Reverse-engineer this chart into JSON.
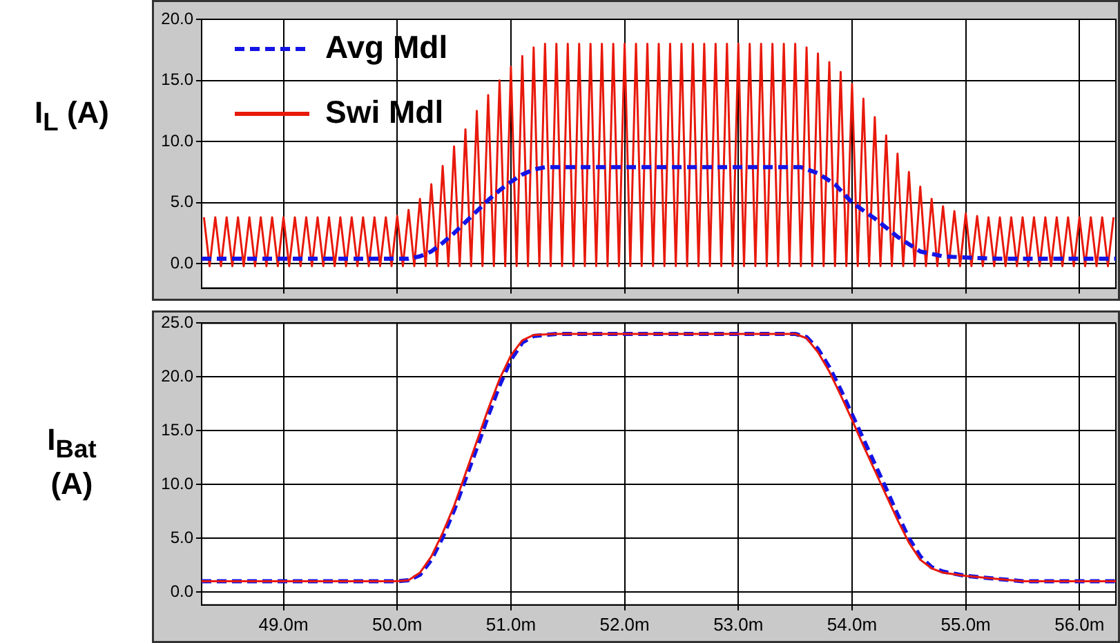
{
  "chart_data": [
    {
      "type": "line",
      "ylabel": "I$_{L}$ (A)",
      "xlim": [
        48.28,
        56.32
      ],
      "ylim": [
        -2,
        20
      ],
      "tick_labels": "y",
      "grid": true,
      "legend": "top left",
      "xticks": [
        49,
        50,
        51,
        52,
        53,
        54,
        55,
        56
      ],
      "yticks": [
        {
          "value": 0,
          "label": "0.0"
        },
        {
          "value": 5,
          "label": "5.0"
        },
        {
          "value": 10,
          "label": "10.0"
        },
        {
          "value": 15,
          "label": "15.0"
        },
        {
          "value": 20,
          "label": "20.0"
        }
      ],
      "series": [
        {
          "name": "Avg Mdl",
          "color": "#1414e6",
          "line_style": "dashed",
          "x": [
            48.28,
            50.1,
            50.2,
            50.3,
            50.4,
            50.5,
            50.6,
            50.7,
            50.8,
            50.9,
            51.0,
            51.1,
            51.2,
            51.3,
            51.4,
            53.55,
            53.7,
            53.85,
            54.0,
            54.2,
            54.4,
            54.6,
            54.8,
            55.0,
            55.3,
            56.32
          ],
          "values": [
            0.4,
            0.4,
            0.6,
            1.0,
            1.7,
            2.5,
            3.4,
            4.3,
            5.2,
            6.0,
            6.7,
            7.3,
            7.7,
            7.9,
            7.9,
            7.9,
            7.4,
            6.5,
            5.0,
            3.7,
            2.2,
            1.0,
            0.6,
            0.5,
            0.4,
            0.4
          ]
        },
        {
          "name": "Swi Mdl",
          "color": "#e8190b",
          "line_style": "solid",
          "x": [
            48.3,
            48.35,
            48.4,
            48.45,
            48.5,
            48.55,
            48.6,
            48.65,
            48.7,
            48.75,
            48.8,
            48.85,
            48.9,
            48.95,
            49,
            49.05,
            49.1,
            49.15,
            49.2,
            49.25,
            49.3,
            49.35,
            49.4,
            49.45,
            49.5,
            49.55,
            49.6,
            49.65,
            49.7,
            49.75,
            49.8,
            49.85,
            49.9,
            49.95,
            50,
            50.05,
            50.1,
            50.15,
            50.2,
            50.25,
            50.3,
            50.35,
            50.4,
            50.45,
            50.5,
            50.55,
            50.6,
            50.65,
            50.7,
            50.75,
            50.8,
            50.85,
            50.9,
            50.95,
            51,
            51.05,
            51.1,
            51.15,
            51.2,
            51.25,
            51.3,
            51.35,
            51.4,
            51.45,
            51.5,
            51.55,
            51.6,
            51.65,
            51.7,
            51.75,
            51.8,
            51.85,
            51.9,
            51.95,
            52,
            52.05,
            52.1,
            52.15,
            52.2,
            52.25,
            52.3,
            52.35,
            52.4,
            52.45,
            52.5,
            52.55,
            52.6,
            52.65,
            52.7,
            52.75,
            52.8,
            52.85,
            52.9,
            52.95,
            53,
            53.05,
            53.1,
            53.15,
            53.2,
            53.25,
            53.3,
            53.35,
            53.4,
            53.45,
            53.5,
            53.55,
            53.6,
            53.65,
            53.7,
            53.75,
            53.8,
            53.85,
            53.9,
            53.95,
            54,
            54.05,
            54.1,
            54.15,
            54.2,
            54.25,
            54.3,
            54.35,
            54.4,
            54.45,
            54.5,
            54.55,
            54.6,
            54.65,
            54.7,
            54.75,
            54.8,
            54.85,
            54.9,
            54.95,
            55,
            55.05,
            55.1,
            55.15,
            55.2,
            55.25,
            55.3,
            55.35,
            55.4,
            55.45,
            55.5,
            55.55,
            55.6,
            55.65,
            55.7,
            55.75,
            55.8,
            55.85,
            55.9,
            55.95,
            56,
            56.05,
            56.1,
            56.15,
            56.2,
            56.25,
            56.3
          ],
          "values": [
            3.8,
            -0.2,
            3.8,
            -0.2,
            3.8,
            -0.2,
            3.8,
            -0.2,
            3.8,
            -0.2,
            3.8,
            -0.2,
            3.8,
            -0.2,
            3.8,
            -0.2,
            3.8,
            -0.2,
            3.8,
            -0.2,
            3.8,
            -0.2,
            3.8,
            -0.2,
            3.8,
            -0.2,
            3.8,
            -0.2,
            3.8,
            -0.2,
            3.8,
            -0.2,
            3.8,
            -0.2,
            3.9,
            -0.2,
            4.4,
            -0.2,
            5.3,
            -0.2,
            6.5,
            -0.2,
            8.0,
            -0.2,
            9.6,
            -0.2,
            11.0,
            -0.2,
            12.5,
            -0.2,
            13.8,
            -0.2,
            15.0,
            -0.2,
            16.1,
            -0.2,
            17.0,
            -0.2,
            17.7,
            -0.2,
            18.0,
            -0.2,
            18.0,
            -0.2,
            18.0,
            -0.2,
            18.0,
            -0.2,
            18.0,
            -0.2,
            18.0,
            -0.2,
            18.0,
            -0.2,
            18.0,
            -0.2,
            18.0,
            -0.2,
            18.0,
            -0.2,
            18.0,
            -0.2,
            18.0,
            -0.2,
            18.0,
            -0.2,
            18.0,
            -0.2,
            18.0,
            -0.2,
            18.0,
            -0.2,
            18.0,
            -0.2,
            18.0,
            -0.2,
            18.0,
            -0.2,
            18.0,
            -0.2,
            18.0,
            -0.2,
            18.0,
            -0.2,
            18.0,
            -0.2,
            17.7,
            -0.2,
            17.2,
            -0.2,
            16.5,
            -0.2,
            15.7,
            -0.2,
            14.7,
            -0.2,
            13.5,
            -0.2,
            12.0,
            -0.2,
            10.5,
            -0.2,
            9.0,
            -0.2,
            7.5,
            -0.2,
            6.3,
            -0.2,
            5.3,
            -0.2,
            4.7,
            -0.2,
            4.3,
            -0.2,
            4.1,
            -0.2,
            3.9,
            -0.2,
            3.8,
            -0.2,
            3.8,
            -0.2,
            3.8,
            -0.2,
            3.8,
            -0.2,
            3.8,
            -0.2,
            3.8,
            -0.2,
            3.8,
            -0.2,
            3.8,
            -0.2,
            3.8,
            -0.2,
            3.8,
            -0.2,
            3.8,
            -0.2,
            3.8
          ]
        }
      ]
    },
    {
      "type": "line",
      "ylabel": "I$_{Bat}$ (A)",
      "xlim": [
        48.28,
        56.32
      ],
      "ylim": [
        -1.2,
        25
      ],
      "grid": true,
      "xticks": [
        {
          "value": 49,
          "label": "49.0m"
        },
        {
          "value": 50,
          "label": "50.0m"
        },
        {
          "value": 51,
          "label": "51.0m"
        },
        {
          "value": 52,
          "label": "52.0m"
        },
        {
          "value": 53,
          "label": "53.0m"
        },
        {
          "value": 54,
          "label": "54.0m"
        },
        {
          "value": 55,
          "label": "55.0m"
        },
        {
          "value": 56,
          "label": "56.0m"
        }
      ],
      "yticks": [
        {
          "value": 0,
          "label": "0.0"
        },
        {
          "value": 5,
          "label": "5.0"
        },
        {
          "value": 10,
          "label": "10.0"
        },
        {
          "value": 15,
          "label": "15.0"
        },
        {
          "value": 20,
          "label": "20.0"
        },
        {
          "value": 25,
          "label": "25.0"
        }
      ],
      "series": [
        {
          "color": "#e8190b",
          "line_style": "solid",
          "x": [
            48.28,
            50.0,
            50.1,
            50.2,
            50.3,
            50.4,
            50.5,
            50.6,
            50.7,
            50.8,
            50.9,
            51.0,
            51.1,
            51.2,
            51.4,
            53.5,
            53.6,
            53.7,
            53.8,
            53.9,
            54.0,
            54.1,
            54.2,
            54.3,
            54.4,
            54.5,
            54.6,
            54.7,
            54.8,
            55.0,
            55.3,
            55.5,
            56.32
          ],
          "values": [
            1.0,
            1.0,
            1.1,
            1.8,
            3.3,
            5.5,
            8.0,
            11.0,
            14.0,
            17.0,
            19.8,
            22.0,
            23.4,
            23.9,
            24.0,
            24.0,
            23.6,
            22.3,
            20.5,
            18.3,
            16.0,
            13.6,
            11.3,
            9.0,
            6.7,
            4.6,
            3.0,
            2.2,
            1.8,
            1.5,
            1.2,
            1.0,
            1.0
          ]
        },
        {
          "color": "#1414e6",
          "line_style": "dashed",
          "x": [
            48.28,
            50.0,
            50.1,
            50.2,
            50.3,
            50.4,
            50.5,
            50.6,
            50.7,
            50.8,
            50.9,
            51.0,
            51.1,
            51.2,
            51.4,
            53.5,
            53.6,
            53.7,
            53.8,
            53.9,
            54.0,
            54.1,
            54.2,
            54.3,
            54.4,
            54.5,
            54.6,
            54.7,
            54.8,
            55.0,
            55.3,
            55.5,
            56.32
          ],
          "values": [
            1.0,
            1.0,
            1.1,
            1.6,
            3.0,
            5.1,
            7.6,
            10.5,
            13.4,
            16.4,
            19.2,
            21.6,
            23.2,
            23.8,
            24.0,
            24.0,
            23.7,
            22.6,
            20.9,
            18.8,
            16.5,
            14.2,
            11.9,
            9.6,
            7.2,
            5.0,
            3.3,
            2.3,
            1.9,
            1.5,
            1.2,
            1.0,
            1.0
          ]
        }
      ]
    }
  ]
}
